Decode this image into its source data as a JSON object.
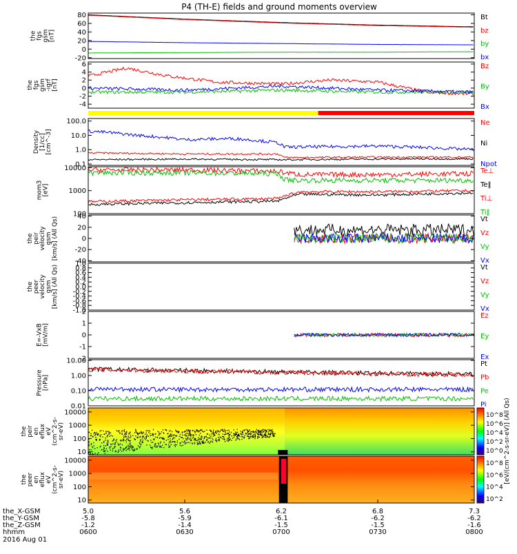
{
  "title": "P4 (TH-E) fields and ground moments overview",
  "panels": [
    {
      "ylabel": [
        "the",
        "fgs",
        "gsm",
        "[nT]"
      ],
      "ticks": [
        "80",
        "60",
        "40",
        "20",
        "0",
        "-20"
      ],
      "tick_vals": [
        80,
        60,
        40,
        20,
        0,
        -20
      ],
      "ymin": -22,
      "ymax": 84,
      "log": false,
      "legend": [
        {
          "label": "Bt",
          "color": "#000000"
        },
        {
          "label": "bz",
          "color": "#ff0000"
        },
        {
          "label": "by",
          "color": "#00c000"
        },
        {
          "label": "bx",
          "color": "#0000ff"
        }
      ]
    },
    {
      "ylabel": [
        "the",
        "fgs",
        "gsm",
        "-igrf",
        "[nT]"
      ],
      "ticks": [
        "6",
        "4",
        "2",
        "0",
        "-2",
        "-4"
      ],
      "tick_vals": [
        6,
        4,
        2,
        0,
        -2,
        -4
      ],
      "ymin": -5,
      "ymax": 6.5,
      "log": false,
      "legend": [
        {
          "label": "Bz",
          "color": "#ff0000"
        },
        {
          "label": "By",
          "color": "#00c000"
        },
        {
          "label": "Bx",
          "color": "#0000ff"
        }
      ]
    },
    {
      "ylabel": [
        "Density",
        "[1/cc]",
        "[cm^-3]"
      ],
      "ticks": [
        "100.0",
        "10.0",
        "1.0",
        "0.1"
      ],
      "tick_vals": [
        100,
        10,
        1,
        0.1
      ],
      "ymin": 0.08,
      "ymax": 150,
      "log": true,
      "legend": [
        {
          "label": "Ne",
          "color": "#ff0000"
        },
        {
          "label": "Ni",
          "color": "#000000"
        },
        {
          "label": "Npot",
          "color": "#0000ff"
        }
      ]
    },
    {
      "ylabel": [
        "mom3",
        "[eV]"
      ],
      "ticks": [
        "10000",
        "1000",
        "100"
      ],
      "tick_vals": [
        10000,
        1000,
        100
      ],
      "ymin": 100,
      "ymax": 11000,
      "log": true,
      "legend": [
        {
          "label": "Te⊥",
          "color": "#ff0000"
        },
        {
          "label": "Te‖",
          "color": "#000000"
        },
        {
          "label": "Ti⊥",
          "color": "#ff0000"
        },
        {
          "label": "Ti‖",
          "color": "#00c000"
        }
      ]
    },
    {
      "ylabel": [
        "the",
        "peir",
        "velocity",
        "gsm",
        "[km/s] (All Qs)"
      ],
      "ticks": [
        "40",
        "20",
        "0",
        "-20",
        "-40"
      ],
      "tick_vals": [
        40,
        20,
        0,
        -20,
        -40
      ],
      "ymin": -42,
      "ymax": 42,
      "log": false,
      "legend": [
        {
          "label": "Vt",
          "color": "#000000"
        },
        {
          "label": "Vz",
          "color": "#ff0000"
        },
        {
          "label": "Vy",
          "color": "#00c000"
        },
        {
          "label": "Vx",
          "color": "#0000ff"
        }
      ]
    },
    {
      "ylabel": [
        "the",
        "peer",
        "velocity",
        "gsm",
        "[km/s] (All Qs)"
      ],
      "ticks": [
        "1.0",
        "0.8",
        "0.6",
        "0.4",
        "0.2",
        "0.0",
        "-0.2",
        "-0.4",
        "-0.6",
        "-0.8",
        "-1.0"
      ],
      "tick_vals": [
        1,
        0.8,
        0.6,
        0.4,
        0.2,
        0,
        -0.2,
        -0.4,
        -0.6,
        -0.8,
        -1
      ],
      "ymin": -1,
      "ymax": 1,
      "log": false,
      "legend": [
        {
          "label": "Vt",
          "color": "#000000"
        },
        {
          "label": "Vz",
          "color": "#ff0000"
        },
        {
          "label": "Vy",
          "color": "#00c000"
        },
        {
          "label": "Vx",
          "color": "#0000ff"
        }
      ]
    },
    {
      "ylabel": [
        "E=-VxB",
        "[mV/m]"
      ],
      "ticks": [
        "2",
        "1",
        "0",
        "-1",
        "-2"
      ],
      "tick_vals": [
        2,
        1,
        0,
        -1,
        -2
      ],
      "ymin": -2,
      "ymax": 2,
      "log": false,
      "legend": [
        {
          "label": "Ez",
          "color": "#ff0000"
        },
        {
          "label": "Ey",
          "color": "#00c000"
        },
        {
          "label": "Ex",
          "color": "#0000ff"
        }
      ]
    },
    {
      "ylabel": [
        "Pressure",
        "[nPa]"
      ],
      "ticks": [
        "10.00",
        "1.00",
        "0.10",
        "0.01"
      ],
      "tick_vals": [
        10,
        1,
        0.1,
        0.01
      ],
      "ymin": 0.01,
      "ymax": 11,
      "log": true,
      "legend": [
        {
          "label": "Pt",
          "color": "#000000"
        },
        {
          "label": "Pb",
          "color": "#ff0000"
        },
        {
          "label": "Pe",
          "color": "#00c000"
        },
        {
          "label": "Pi",
          "color": "#0000ff"
        }
      ]
    },
    {
      "ylabel": [
        "the",
        "peir",
        "en",
        "eflux",
        "eV",
        "(cm^2-s-",
        "sr-eV)"
      ],
      "ticks": [
        "10000",
        "1000",
        "100",
        "10"
      ],
      "tick_vals": [
        10000,
        1000,
        100,
        10
      ],
      "ymin": 6,
      "ymax": 20000,
      "log": true,
      "legend": []
    },
    {
      "ylabel": [
        "the",
        "peer",
        "en",
        "eflux",
        "eV",
        "(cm^2-s-",
        "sr-eV)"
      ],
      "ticks": [
        "10000",
        "1000",
        "100",
        "10"
      ],
      "tick_vals": [
        10000,
        1000,
        100,
        10
      ],
      "ymin": 6,
      "ymax": 20000,
      "log": true,
      "legend": []
    }
  ],
  "colorbars": [
    {
      "ticks": [
        "10^8",
        "10^6",
        "10^4",
        "10^2",
        "10^0"
      ],
      "label": "[eV/(cm^2-s-sr-eV)] (All Qs)"
    },
    {
      "ticks": [
        "10^8",
        "10^6",
        "10^4",
        "10^2"
      ],
      "label": "[eV/(cm^2-s-sr-eV)]"
    }
  ],
  "mode_bar": {
    "segments": [
      {
        "from": 5.0,
        "to": 6.37,
        "color": "#ffff00"
      },
      {
        "from": 6.37,
        "to": 7.3,
        "color": "#ff0000"
      }
    ]
  },
  "x_axis": {
    "rows": [
      {
        "name": "the_X-GSM",
        "values": [
          "5.0",
          "5.6",
          "6.2",
          "6.8",
          "7.3"
        ]
      },
      {
        "name": "the_Y-GSM",
        "values": [
          "-5.8",
          "-5.9",
          "-6.1",
          "-6.2",
          "-6.2"
        ]
      },
      {
        "name": "the_Z-GSM",
        "values": [
          "-1.2",
          "-1.4",
          "-1.5",
          "-1.5",
          "-1.6"
        ]
      },
      {
        "name": "hhmm",
        "values": [
          "0600",
          "0630",
          "0700",
          "0730",
          "0800"
        ]
      }
    ],
    "date": "2016 Aug 01"
  },
  "chart_data": {
    "type": "line",
    "title": "P4 (TH-E) fields and ground moments overview",
    "x_label": "hhmm",
    "x_ticks": [
      "0600",
      "0630",
      "0700",
      "0730",
      "0800"
    ],
    "x_range_minutes": [
      0,
      120
    ],
    "panels": [
      {
        "name": "the fgs gsm [nT]",
        "series": [
          {
            "name": "Bt",
            "x": [
              0,
              30,
              60,
              90,
              120
            ],
            "values": [
              80,
              70,
              62,
              56,
              52
            ]
          },
          {
            "name": "bz",
            "x": [
              0,
              30,
              60,
              90,
              120
            ],
            "values": [
              79,
              69,
              61,
              55,
              51
            ]
          },
          {
            "name": "by",
            "x": [
              0,
              30,
              60,
              90,
              120
            ],
            "values": [
              -9,
              -8,
              -7,
              -7,
              -6
            ]
          },
          {
            "name": "bx",
            "x": [
              0,
              30,
              60,
              90,
              120
            ],
            "values": [
              18,
              15,
              13,
              11,
              10
            ]
          }
        ]
      },
      {
        "name": "the fgs gsm -igrf [nT]",
        "series": [
          {
            "name": "Bz",
            "x": [
              0,
              12,
              25,
              40,
              60,
              75,
              90,
              105,
              120
            ],
            "values": [
              3,
              5,
              3,
              1.5,
              1,
              2,
              1.5,
              -1,
              -1.5
            ]
          },
          {
            "name": "By",
            "x": [
              0,
              30,
              60,
              90,
              120
            ],
            "values": [
              -1,
              -1,
              -0.5,
              -1,
              -1
            ]
          },
          {
            "name": "Bx",
            "x": [
              0,
              30,
              60,
              90,
              120
            ],
            "values": [
              0,
              -0.5,
              0.5,
              -0.5,
              -1
            ]
          }
        ]
      },
      {
        "name": "Density",
        "series": [
          {
            "name": "Ne",
            "x": [
              0,
              30,
              59,
              61,
              90,
              120
            ],
            "values": [
              0.6,
              0.5,
              0.5,
              0.28,
              0.3,
              0.3
            ]
          },
          {
            "name": "Ni",
            "x": [
              0,
              30,
              59,
              61,
              90,
              120
            ],
            "values": [
              0.2,
              0.22,
              0.2,
              0.2,
              0.22,
              0.23
            ]
          },
          {
            "name": "Npot",
            "x": [
              0,
              15,
              30,
              45,
              59,
              61,
              90,
              120
            ],
            "values": [
              20,
              10,
              5,
              6,
              3,
              1.5,
              1.8,
              1.0
            ]
          }
        ]
      },
      {
        "name": "mom3 [eV]",
        "series": [
          {
            "name": "Te⊥",
            "x": [
              0,
              30,
              59,
              61,
              66,
              90,
              120
            ],
            "values": [
              8000,
              8000,
              7000,
              6000,
              5000,
              5000,
              5500
            ]
          },
          {
            "name": "Te‖",
            "x": [
              0,
              30,
              59,
              66,
              90,
              120
            ],
            "values": [
              250,
              300,
              350,
              700,
              650,
              800
            ]
          },
          {
            "name": "Ti⊥",
            "x": [
              0,
              30,
              59,
              66,
              90,
              120
            ],
            "values": [
              330,
              400,
              450,
              900,
              900,
              1000
            ]
          },
          {
            "name": "Ti‖",
            "x": [
              0,
              30,
              59,
              61,
              66,
              90,
              120
            ],
            "values": [
              6000,
              6000,
              5500,
              3000,
              2800,
              2800,
              2800
            ]
          }
        ]
      },
      {
        "name": "the peir velocity gsm [km/s]",
        "series": [
          {
            "name": "Vt",
            "x": [
              64,
              120
            ],
            "values": [
              15,
              15
            ]
          },
          {
            "name": "Vz",
            "x": [
              64,
              120
            ],
            "values": [
              0,
              0
            ]
          },
          {
            "name": "Vy",
            "x": [
              64,
              120
            ],
            "values": [
              0,
              0
            ]
          },
          {
            "name": "Vx",
            "x": [
              64,
              120
            ],
            "values": [
              0,
              0
            ]
          }
        ]
      },
      {
        "name": "E=-VxB [mV/m]",
        "series": [
          {
            "name": "Ez",
            "x": [
              64,
              120
            ],
            "values": [
              0,
              0
            ]
          },
          {
            "name": "Ey",
            "x": [
              64,
              120
            ],
            "values": [
              0,
              0
            ]
          },
          {
            "name": "Ex",
            "x": [
              64,
              120
            ],
            "values": [
              0,
              0
            ]
          }
        ]
      },
      {
        "name": "Pressure [nPa]",
        "series": [
          {
            "name": "Pt",
            "x": [
              0,
              30,
              60,
              90,
              120
            ],
            "values": [
              2.6,
              2.1,
              1.7,
              1.4,
              1.2
            ]
          },
          {
            "name": "Pb",
            "x": [
              0,
              30,
              60,
              90,
              120
            ],
            "values": [
              2.5,
              2.0,
              1.6,
              1.3,
              1.1
            ]
          },
          {
            "name": "Pe",
            "x": [
              0,
              30,
              60,
              90,
              120
            ],
            "values": [
              0.03,
              0.03,
              0.03,
              0.03,
              0.03
            ]
          },
          {
            "name": "Pi",
            "x": [
              0,
              30,
              60,
              90,
              120
            ],
            "values": [
              0.13,
              0.12,
              0.12,
              0.12,
              0.12
            ]
          }
        ]
      }
    ]
  }
}
